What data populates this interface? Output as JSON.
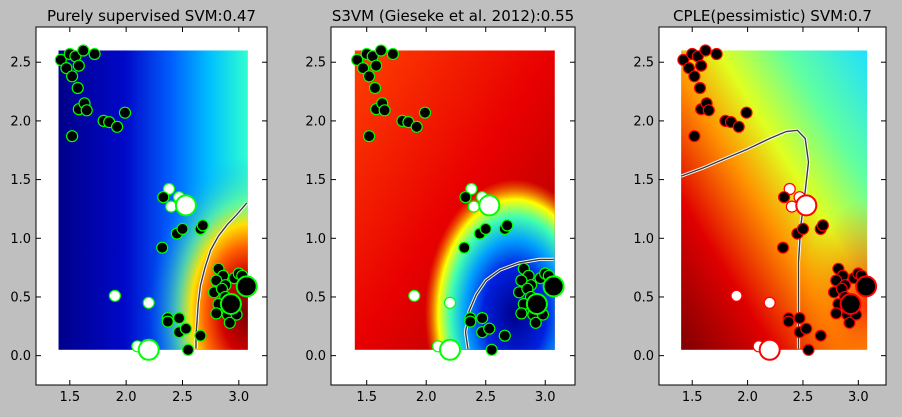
{
  "figure": {
    "background": "#bfbfbf"
  },
  "chart_data": [
    {
      "type": "scatter",
      "title": "Purely supervised SVM:0.47",
      "background": "decision-function heatmap (jet colormap), blue on the left, red in the lower-right; dark contour line at the decision boundary",
      "xlim": [
        1.2,
        3.25
      ],
      "ylim": [
        -0.25,
        2.8
      ],
      "xticks": [
        "1.5",
        "2.0",
        "2.5",
        "3.0"
      ],
      "yticks": [
        "0.0",
        "0.5",
        "1.0",
        "1.5",
        "2.0",
        "2.5"
      ],
      "grid": false,
      "point_edge_color": "#00ff00",
      "boundary": [
        [
          2.62,
          0.06
        ],
        [
          2.62,
          0.18
        ],
        [
          2.63,
          0.3
        ],
        [
          2.64,
          0.45
        ],
        [
          2.66,
          0.6
        ],
        [
          2.7,
          0.75
        ],
        [
          2.75,
          0.9
        ],
        [
          2.82,
          1.02
        ],
        [
          2.9,
          1.12
        ],
        [
          2.98,
          1.2
        ],
        [
          3.07,
          1.3
        ]
      ]
    },
    {
      "type": "scatter",
      "title": "S3VM (Gieseke et al. 2012):0.55",
      "background": "decision-function heatmap (jet colormap), mostly red/orange with a blue region in the lower-right; dark contour line at the decision boundary",
      "xlim": [
        1.2,
        3.25
      ],
      "ylim": [
        -0.25,
        2.8
      ],
      "xticks": [
        "1.5",
        "2.0",
        "2.5",
        "3.0"
      ],
      "yticks": [
        "0.0",
        "0.5",
        "1.0",
        "1.5",
        "2.0",
        "2.5"
      ],
      "grid": false,
      "point_edge_color": "#00ff00",
      "boundary": [
        [
          2.35,
          0.06
        ],
        [
          2.33,
          0.2
        ],
        [
          2.36,
          0.38
        ],
        [
          2.42,
          0.52
        ],
        [
          2.5,
          0.64
        ],
        [
          2.62,
          0.73
        ],
        [
          2.78,
          0.79
        ],
        [
          2.95,
          0.82
        ],
        [
          3.07,
          0.82
        ]
      ]
    },
    {
      "type": "scatter",
      "title": "CPLE(pessimistic) SVM:0.7",
      "background": "decision-function heatmap (jet colormap), dark red in the lower-left through yellow/green to cyan in the upper-right; dark contour line at the decision boundary",
      "xlim": [
        1.2,
        3.25
      ],
      "ylim": [
        -0.25,
        2.8
      ],
      "xticks": [
        "1.5",
        "2.0",
        "2.5",
        "3.0"
      ],
      "yticks": [
        "0.0",
        "0.5",
        "1.0",
        "1.5",
        "2.0",
        "2.5"
      ],
      "grid": false,
      "point_edge_color": "#ff0000",
      "boundary": [
        [
          1.4,
          1.53
        ],
        [
          1.6,
          1.6
        ],
        [
          1.8,
          1.68
        ],
        [
          2.0,
          1.76
        ],
        [
          2.2,
          1.85
        ],
        [
          2.35,
          1.91
        ],
        [
          2.45,
          1.92
        ],
        [
          2.52,
          1.85
        ],
        [
          2.55,
          1.65
        ],
        [
          2.52,
          1.4
        ],
        [
          2.48,
          1.1
        ],
        [
          2.46,
          0.8
        ],
        [
          2.46,
          0.45
        ],
        [
          2.46,
          0.06
        ]
      ]
    }
  ],
  "shared_points": {
    "note_fields": [
      "x",
      "y",
      "fill",
      "size"
    ],
    "points": [
      [
        1.42,
        2.52,
        "black",
        "s"
      ],
      [
        1.47,
        2.45,
        "black",
        "s"
      ],
      [
        1.5,
        2.57,
        "black",
        "s"
      ],
      [
        1.55,
        2.55,
        "black",
        "s"
      ],
      [
        1.52,
        2.38,
        "black",
        "s"
      ],
      [
        1.58,
        2.47,
        "black",
        "s"
      ],
      [
        1.62,
        2.6,
        "black",
        "s"
      ],
      [
        1.72,
        2.57,
        "black",
        "s"
      ],
      [
        1.57,
        2.28,
        "black",
        "s"
      ],
      [
        1.58,
        2.1,
        "black",
        "s"
      ],
      [
        1.63,
        2.15,
        "black",
        "s"
      ],
      [
        1.65,
        2.09,
        "black",
        "s"
      ],
      [
        1.52,
        1.87,
        "black",
        "s"
      ],
      [
        1.8,
        2.0,
        "black",
        "s"
      ],
      [
        1.85,
        1.99,
        "black",
        "s"
      ],
      [
        1.92,
        1.95,
        "black",
        "s"
      ],
      [
        1.99,
        2.07,
        "black",
        "s"
      ],
      [
        2.38,
        1.42,
        "white",
        "s"
      ],
      [
        2.33,
        1.35,
        "black",
        "s"
      ],
      [
        2.4,
        1.27,
        "white",
        "s"
      ],
      [
        2.47,
        1.35,
        "white",
        "s"
      ],
      [
        2.53,
        1.28,
        "white",
        "l"
      ],
      [
        2.45,
        1.04,
        "black",
        "s"
      ],
      [
        2.5,
        1.08,
        "black",
        "s"
      ],
      [
        2.66,
        1.08,
        "black",
        "s"
      ],
      [
        2.68,
        1.11,
        "black",
        "s"
      ],
      [
        2.32,
        0.92,
        "black",
        "s"
      ],
      [
        1.9,
        0.51,
        "white",
        "s"
      ],
      [
        2.2,
        0.45,
        "white",
        "s"
      ],
      [
        2.37,
        0.32,
        "black",
        "s"
      ],
      [
        2.37,
        0.29,
        "black",
        "s"
      ],
      [
        2.47,
        0.32,
        "black",
        "s"
      ],
      [
        2.47,
        0.2,
        "black",
        "s"
      ],
      [
        2.53,
        0.23,
        "black",
        "s"
      ],
      [
        2.55,
        0.05,
        "black",
        "s"
      ],
      [
        2.1,
        0.08,
        "white",
        "s"
      ],
      [
        2.2,
        0.05,
        "white",
        "l"
      ],
      [
        2.66,
        0.17,
        "black",
        "s"
      ],
      [
        2.82,
        0.74,
        "black",
        "s"
      ],
      [
        2.86,
        0.68,
        "black",
        "s"
      ],
      [
        2.8,
        0.64,
        "black",
        "s"
      ],
      [
        2.88,
        0.6,
        "black",
        "s"
      ],
      [
        2.78,
        0.54,
        "black",
        "s"
      ],
      [
        2.85,
        0.57,
        "black",
        "s"
      ],
      [
        2.88,
        0.5,
        "black",
        "s"
      ],
      [
        2.82,
        0.44,
        "black",
        "s"
      ],
      [
        2.8,
        0.36,
        "black",
        "s"
      ],
      [
        2.9,
        0.35,
        "black",
        "s"
      ],
      [
        2.98,
        0.35,
        "black",
        "s"
      ],
      [
        2.92,
        0.28,
        "black",
        "s"
      ],
      [
        2.96,
        0.66,
        "black",
        "s"
      ],
      [
        3.0,
        0.7,
        "black",
        "s"
      ],
      [
        3.03,
        0.68,
        "black",
        "s"
      ],
      [
        2.93,
        0.44,
        "black",
        "l"
      ],
      [
        3.07,
        0.59,
        "black",
        "l"
      ]
    ]
  }
}
